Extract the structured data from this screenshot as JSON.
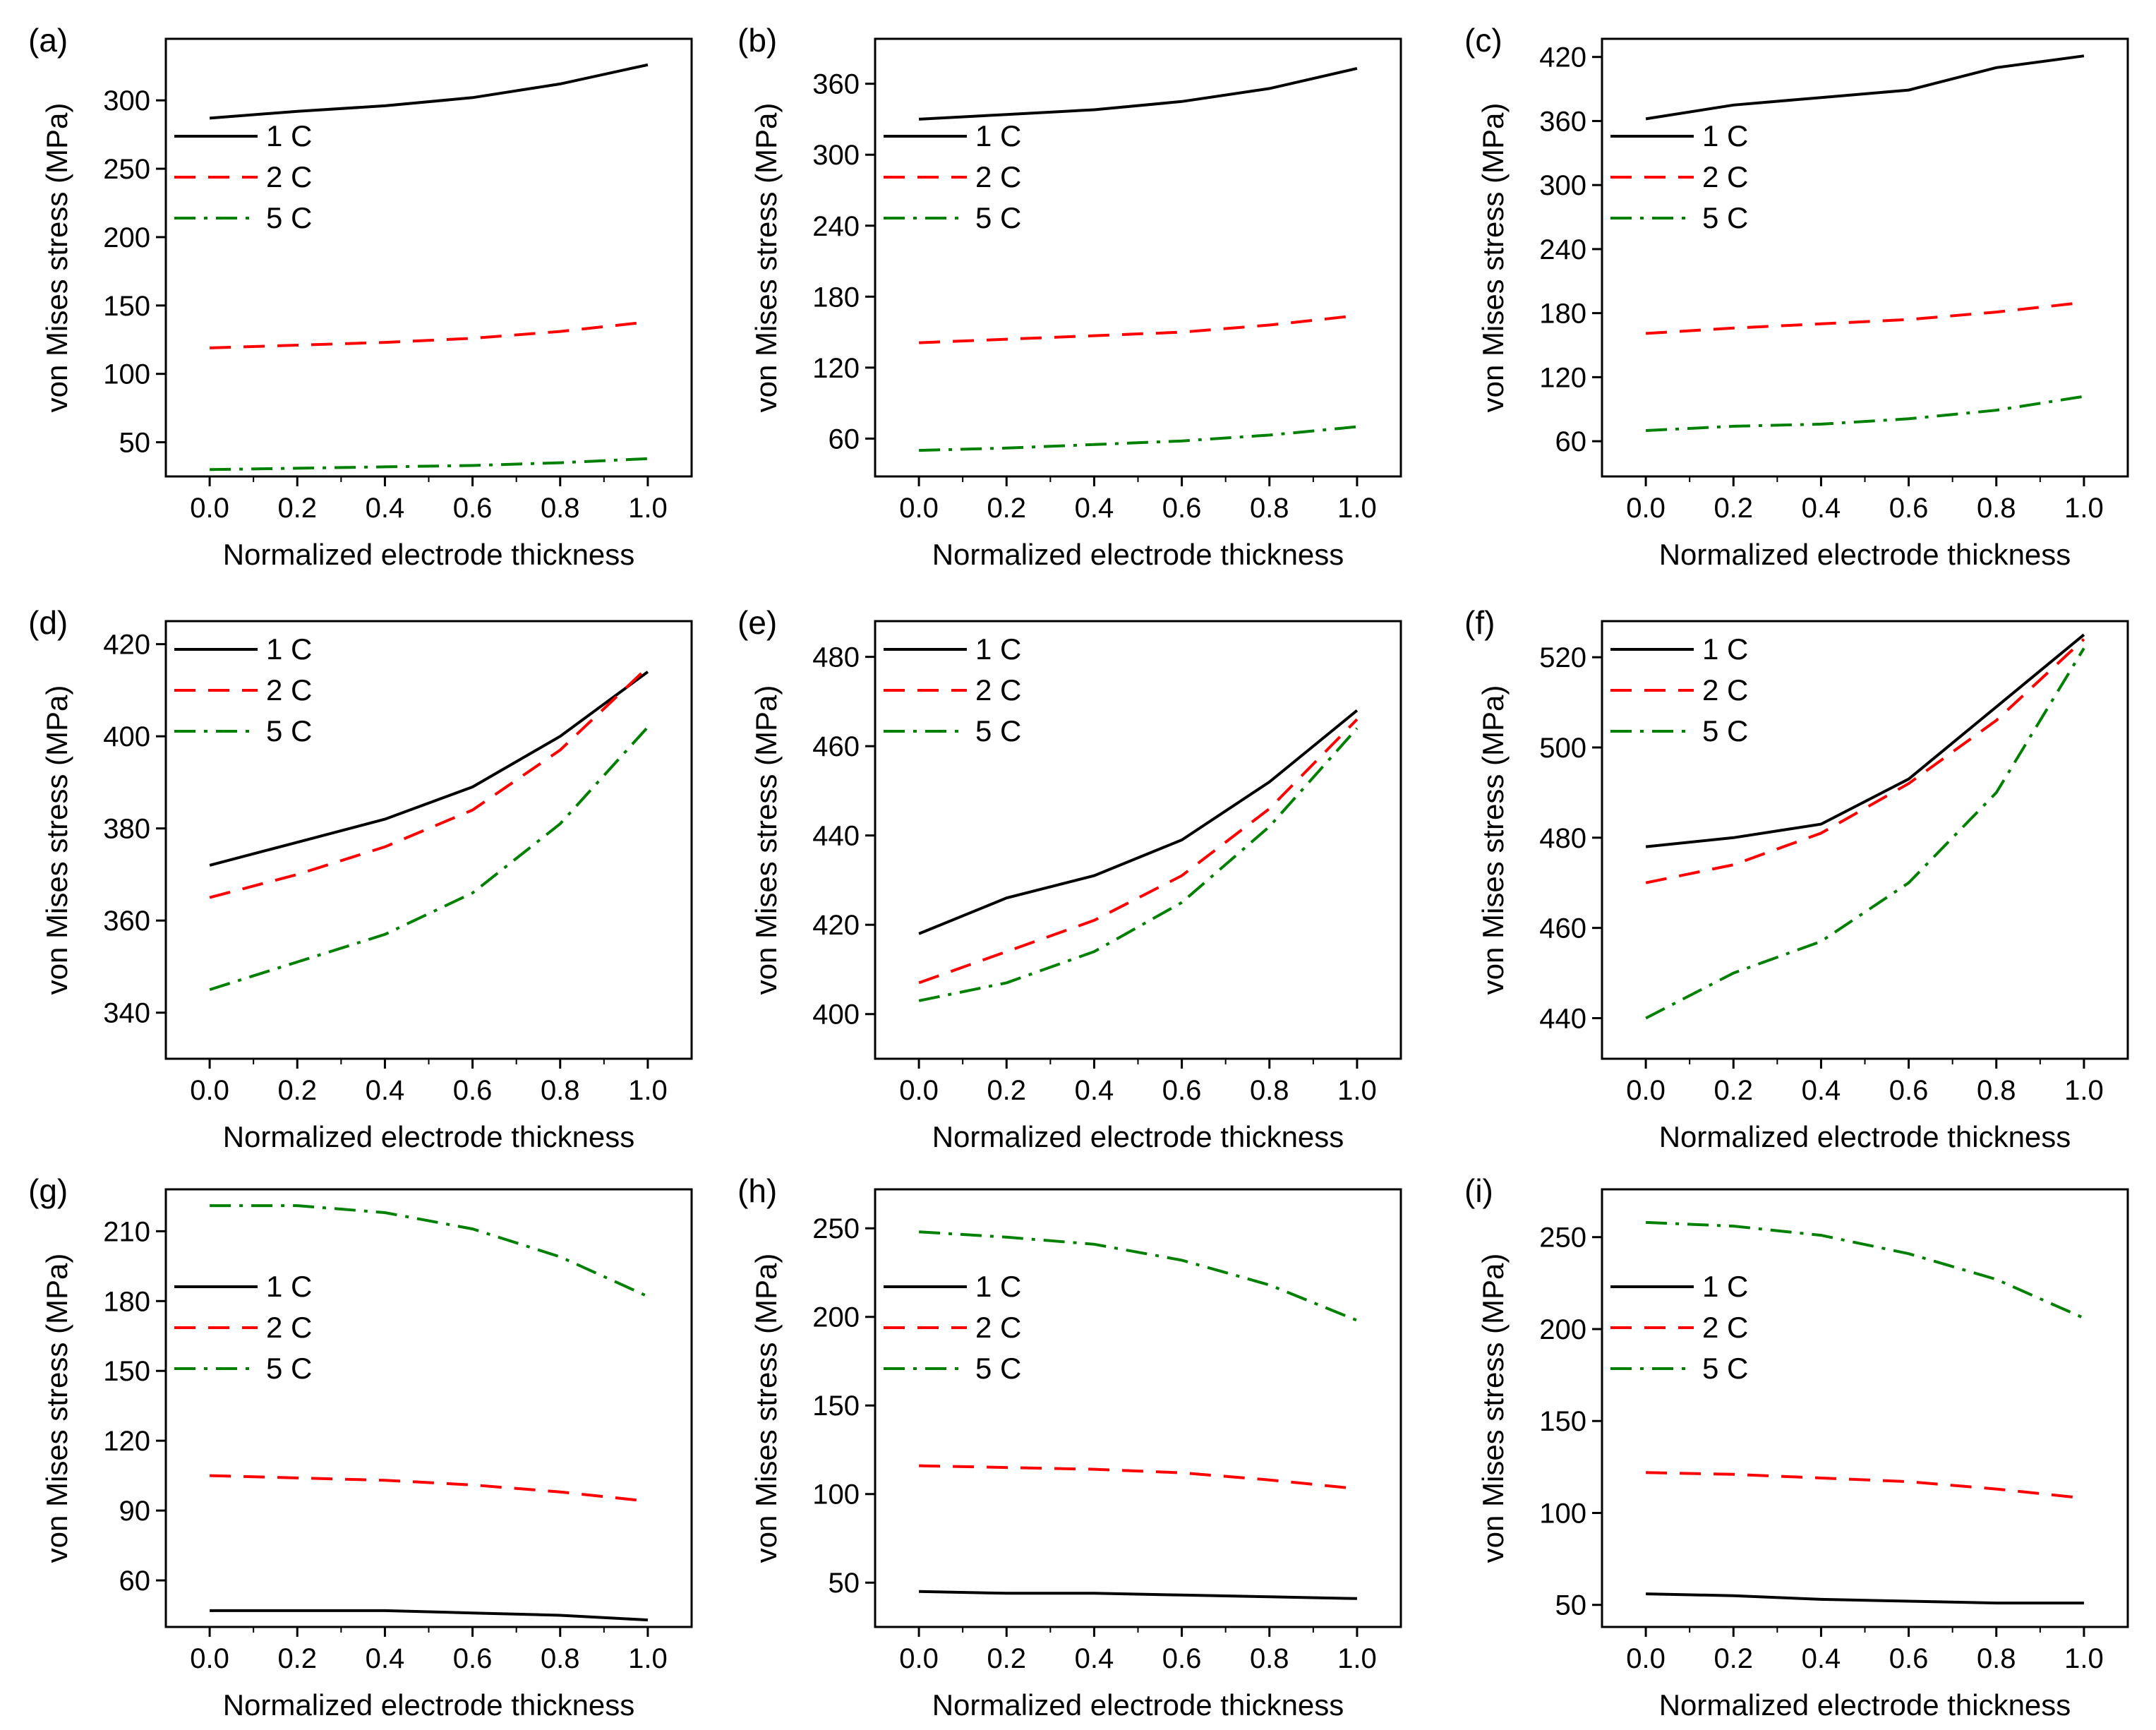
{
  "figure": {
    "xlabel": "Normalized electrode thickness",
    "ylabel": "von Mises stress (MPa)",
    "legend_labels": [
      "1 C",
      "2 C",
      "5 C"
    ],
    "colors": {
      "1 C": "#000000",
      "2 C": "#ff0000",
      "5 C": "#008000"
    }
  },
  "chart_data": [
    {
      "panel": "(a)",
      "type": "line",
      "title": "",
      "xlabel": "Normalized electrode thickness",
      "ylabel": "von Mises stress (MPa)",
      "xlim": [
        -0.1,
        1.1
      ],
      "ylim": [
        25,
        345
      ],
      "xticks": [
        0.0,
        0.2,
        0.4,
        0.6,
        0.8,
        1.0
      ],
      "yticks": [
        50,
        100,
        150,
        200,
        250,
        300
      ],
      "legend_position": "center-left",
      "x": [
        0.0,
        0.2,
        0.4,
        0.6,
        0.8,
        1.0
      ],
      "series": [
        {
          "name": "1 C",
          "values": [
            287,
            292,
            296,
            302,
            312,
            326
          ]
        },
        {
          "name": "2 C",
          "values": [
            119,
            121,
            123,
            126,
            131,
            138
          ]
        },
        {
          "name": "5 C",
          "values": [
            30,
            31,
            32,
            33,
            35,
            38
          ]
        }
      ]
    },
    {
      "panel": "(b)",
      "type": "line",
      "title": "",
      "xlabel": "Normalized electrode thickness",
      "ylabel": "von Mises stress (MPa)",
      "xlim": [
        -0.1,
        1.1
      ],
      "ylim": [
        28,
        398
      ],
      "xticks": [
        0.0,
        0.2,
        0.4,
        0.6,
        0.8,
        1.0
      ],
      "yticks": [
        60,
        120,
        180,
        240,
        300,
        360
      ],
      "legend_position": "center-left",
      "x": [
        0.0,
        0.2,
        0.4,
        0.6,
        0.8,
        1.0
      ],
      "series": [
        {
          "name": "1 C",
          "values": [
            330,
            334,
            338,
            345,
            356,
            373
          ]
        },
        {
          "name": "2 C",
          "values": [
            141,
            144,
            147,
            150,
            156,
            164
          ]
        },
        {
          "name": "5 C",
          "values": [
            50,
            52,
            55,
            58,
            63,
            70
          ]
        }
      ]
    },
    {
      "panel": "(c)",
      "type": "line",
      "title": "",
      "xlabel": "Normalized electrode thickness",
      "ylabel": "von Mises stress (MPa)",
      "xlim": [
        -0.1,
        1.1
      ],
      "ylim": [
        27,
        437
      ],
      "xticks": [
        0.0,
        0.2,
        0.4,
        0.6,
        0.8,
        1.0
      ],
      "yticks": [
        60,
        120,
        180,
        240,
        300,
        360,
        420
      ],
      "legend_position": "center-left",
      "x": [
        0.0,
        0.2,
        0.4,
        0.6,
        0.8,
        1.0
      ],
      "series": [
        {
          "name": "1 C",
          "values": [
            362,
            375,
            382,
            389,
            410,
            421
          ]
        },
        {
          "name": "2 C",
          "values": [
            161,
            166,
            170,
            174,
            181,
            190
          ]
        },
        {
          "name": "5 C",
          "values": [
            70,
            74,
            76,
            81,
            89,
            102
          ]
        }
      ]
    },
    {
      "panel": "(d)",
      "type": "line",
      "title": "",
      "xlabel": "Normalized electrode thickness",
      "ylabel": "von Mises stress (MPa)",
      "xlim": [
        -0.1,
        1.1
      ],
      "ylim": [
        330,
        425
      ],
      "xticks": [
        0.0,
        0.2,
        0.4,
        0.6,
        0.8,
        1.0
      ],
      "yticks": [
        340,
        360,
        380,
        400,
        420
      ],
      "legend_position": "top-left",
      "x": [
        0.0,
        0.2,
        0.4,
        0.6,
        0.8,
        1.0
      ],
      "series": [
        {
          "name": "1 C",
          "values": [
            372,
            377,
            382,
            389,
            400,
            414
          ]
        },
        {
          "name": "2 C",
          "values": [
            365,
            370,
            376,
            384,
            397,
            415
          ]
        },
        {
          "name": "5 C",
          "values": [
            345,
            351,
            357,
            366,
            381,
            402
          ]
        }
      ]
    },
    {
      "panel": "(e)",
      "type": "line",
      "title": "",
      "xlabel": "Normalized electrode thickness",
      "ylabel": "von Mises stress (MPa)",
      "xlim": [
        -0.1,
        1.1
      ],
      "ylim": [
        390,
        488
      ],
      "xticks": [
        0.0,
        0.2,
        0.4,
        0.6,
        0.8,
        1.0
      ],
      "yticks": [
        400,
        420,
        440,
        460,
        480
      ],
      "legend_position": "top-left",
      "x": [
        0.0,
        0.2,
        0.4,
        0.6,
        0.8,
        1.0
      ],
      "series": [
        {
          "name": "1 C",
          "values": [
            418,
            426,
            431,
            439,
            452,
            468
          ]
        },
        {
          "name": "2 C",
          "values": [
            407,
            414,
            421,
            431,
            446,
            466
          ]
        },
        {
          "name": "5 C",
          "values": [
            403,
            407,
            414,
            425,
            442,
            464
          ]
        }
      ]
    },
    {
      "panel": "(f)",
      "type": "line",
      "title": "",
      "xlabel": "Normalized electrode thickness",
      "ylabel": "von Mises stress (MPa)",
      "xlim": [
        -0.1,
        1.1
      ],
      "ylim": [
        431,
        528
      ],
      "xticks": [
        0.0,
        0.2,
        0.4,
        0.6,
        0.8,
        1.0
      ],
      "yticks": [
        440,
        460,
        480,
        500,
        520
      ],
      "legend_position": "top-left",
      "x": [
        0.0,
        0.2,
        0.4,
        0.6,
        0.8,
        1.0
      ],
      "series": [
        {
          "name": "1 C",
          "values": [
            478,
            480,
            483,
            493,
            509,
            525
          ]
        },
        {
          "name": "2 C",
          "values": [
            470,
            474,
            481,
            492,
            506,
            524
          ]
        },
        {
          "name": "5 C",
          "values": [
            440,
            450,
            457,
            470,
            490,
            522
          ]
        }
      ]
    },
    {
      "panel": "(g)",
      "type": "line",
      "title": "",
      "xlabel": "Normalized electrode thickness",
      "ylabel": "von Mises stress (MPa)",
      "xlim": [
        -0.1,
        1.1
      ],
      "ylim": [
        40,
        228
      ],
      "xticks": [
        0.0,
        0.2,
        0.4,
        0.6,
        0.8,
        1.0
      ],
      "yticks": [
        60,
        90,
        120,
        150,
        180,
        210
      ],
      "legend_position": "center-left",
      "x": [
        0.0,
        0.2,
        0.4,
        0.6,
        0.8,
        1.0
      ],
      "series": [
        {
          "name": "1 C",
          "values": [
            47,
            47,
            47,
            46,
            45,
            43
          ]
        },
        {
          "name": "2 C",
          "values": [
            105,
            104,
            103,
            101,
            98,
            94
          ]
        },
        {
          "name": "5 C",
          "values": [
            221,
            221,
            218,
            211,
            199,
            182
          ]
        }
      ]
    },
    {
      "panel": "(h)",
      "type": "line",
      "title": "",
      "xlabel": "Normalized electrode thickness",
      "ylabel": "von Mises stress (MPa)",
      "xlim": [
        -0.1,
        1.1
      ],
      "ylim": [
        25,
        272
      ],
      "xticks": [
        0.0,
        0.2,
        0.4,
        0.6,
        0.8,
        1.0
      ],
      "yticks": [
        50,
        100,
        150,
        200,
        250
      ],
      "legend_position": "center-left",
      "x": [
        0.0,
        0.2,
        0.4,
        0.6,
        0.8,
        1.0
      ],
      "series": [
        {
          "name": "1 C",
          "values": [
            45,
            44,
            44,
            43,
            42,
            41
          ]
        },
        {
          "name": "2 C",
          "values": [
            116,
            115,
            114,
            112,
            108,
            103
          ]
        },
        {
          "name": "5 C",
          "values": [
            248,
            245,
            241,
            232,
            218,
            198
          ]
        }
      ]
    },
    {
      "panel": "(i)",
      "type": "line",
      "title": "",
      "xlabel": "Normalized electrode thickness",
      "ylabel": "von Mises stress (MPa)",
      "xlim": [
        -0.1,
        1.1
      ],
      "ylim": [
        38,
        276
      ],
      "xticks": [
        0.0,
        0.2,
        0.4,
        0.6,
        0.8,
        1.0
      ],
      "yticks": [
        50,
        100,
        150,
        200,
        250
      ],
      "legend_position": "center-left",
      "x": [
        0.0,
        0.2,
        0.4,
        0.6,
        0.8,
        1.0
      ],
      "series": [
        {
          "name": "1 C",
          "values": [
            56,
            55,
            53,
            52,
            51,
            51
          ]
        },
        {
          "name": "2 C",
          "values": [
            122,
            121,
            119,
            117,
            113,
            108
          ]
        },
        {
          "name": "5 C",
          "values": [
            258,
            256,
            251,
            241,
            227,
            206
          ]
        }
      ]
    }
  ]
}
